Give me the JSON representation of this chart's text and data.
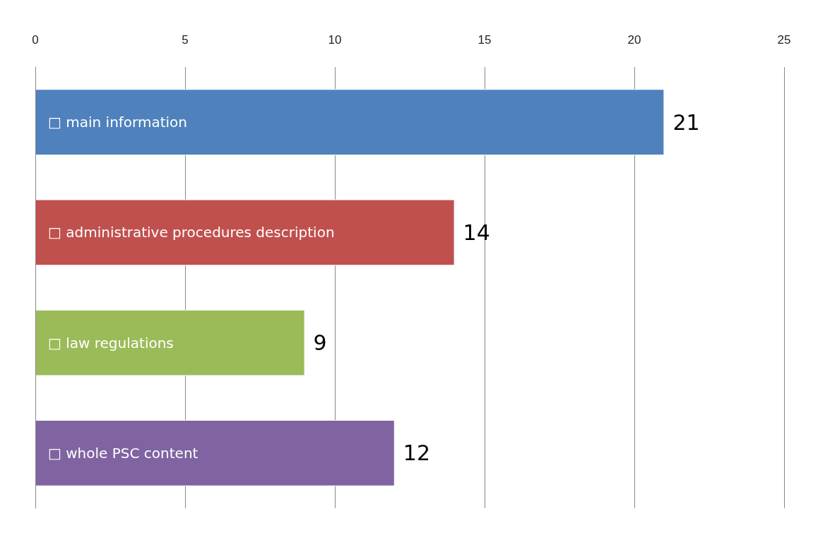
{
  "chart_data": {
    "type": "bar",
    "orientation": "horizontal",
    "categories": [
      "□ main information",
      "□ administrative procedures description",
      "□ law regulations",
      "□ whole PSC content"
    ],
    "values": [
      21,
      14,
      9,
      12
    ],
    "colors": [
      "#4f81bd",
      "#c0504d",
      "#9bbb59",
      "#8064a2"
    ],
    "xlim": [
      0,
      25
    ],
    "xticks": [
      0,
      5,
      10,
      15,
      20,
      25
    ],
    "grid": "x",
    "data_labels": true
  }
}
